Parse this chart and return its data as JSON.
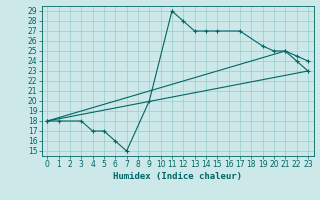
{
  "xlabel": "Humidex (Indice chaleur)",
  "bg_color": "#cce8e8",
  "grid_color": "#99cccc",
  "line_color": "#006666",
  "xlim": [
    -0.5,
    23.5
  ],
  "ylim": [
    14.5,
    29.5
  ],
  "xticks": [
    0,
    1,
    2,
    3,
    4,
    5,
    6,
    7,
    8,
    9,
    10,
    11,
    12,
    13,
    14,
    15,
    16,
    17,
    18,
    19,
    20,
    21,
    22,
    23
  ],
  "yticks": [
    15,
    16,
    17,
    18,
    19,
    20,
    21,
    22,
    23,
    24,
    25,
    26,
    27,
    28,
    29
  ],
  "line1_x": [
    0,
    1,
    3,
    4,
    5,
    6,
    7,
    9,
    11,
    12,
    13,
    14,
    15,
    17,
    19,
    20,
    21,
    22,
    23
  ],
  "line1_y": [
    18,
    18,
    18,
    17,
    17,
    16,
    15,
    20,
    29,
    28,
    27,
    27,
    27,
    27,
    25.5,
    25,
    25,
    24,
    23
  ],
  "line2_x": [
    0,
    23
  ],
  "line2_y": [
    18,
    23
  ],
  "line3_x": [
    0,
    21,
    22,
    23
  ],
  "line3_y": [
    18,
    25,
    24.5,
    24
  ],
  "xlabel_fontsize": 6.5,
  "tick_fontsize": 5.5
}
